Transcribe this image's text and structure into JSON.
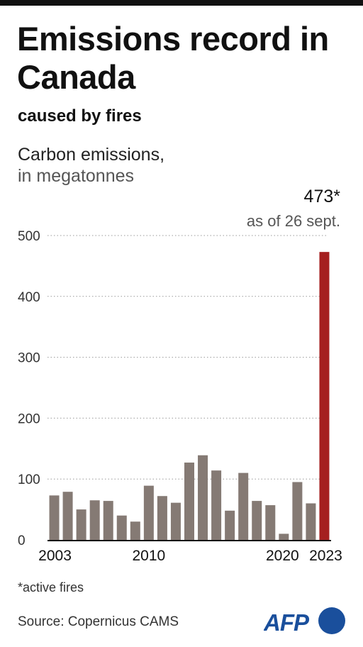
{
  "header": {
    "title": "Emissions record in Canada",
    "subtitle": "caused by fires",
    "unit_line1": "Carbon emissions,",
    "unit_line2": "in megatonnes"
  },
  "annotation": {
    "value": "473*",
    "note": "as of 26 sept."
  },
  "footer": {
    "footnote": "*active fires",
    "source": "Source: Copernicus CAMS",
    "logo_text": "AFP"
  },
  "colors": {
    "bar": "#857a74",
    "highlight": "#a51f1f",
    "grid": "#999999",
    "text": "#111111",
    "logo": "#1a4f9c"
  },
  "chart_data": {
    "type": "bar",
    "categories": [
      2003,
      2004,
      2005,
      2006,
      2007,
      2008,
      2009,
      2010,
      2011,
      2012,
      2013,
      2014,
      2015,
      2016,
      2017,
      2018,
      2019,
      2020,
      2021,
      2022,
      2023
    ],
    "values": [
      73,
      79,
      50,
      65,
      64,
      40,
      30,
      89,
      72,
      61,
      127,
      139,
      114,
      48,
      110,
      64,
      57,
      10,
      95,
      60,
      473
    ],
    "x_tick_labels": [
      "2003",
      "2010",
      "2020",
      "2023"
    ],
    "y_ticks": [
      0,
      100,
      200,
      300,
      400,
      500
    ],
    "ylim": [
      0,
      500
    ],
    "grid": true,
    "highlight_category": 2023,
    "xlabel": "",
    "ylabel": ""
  }
}
